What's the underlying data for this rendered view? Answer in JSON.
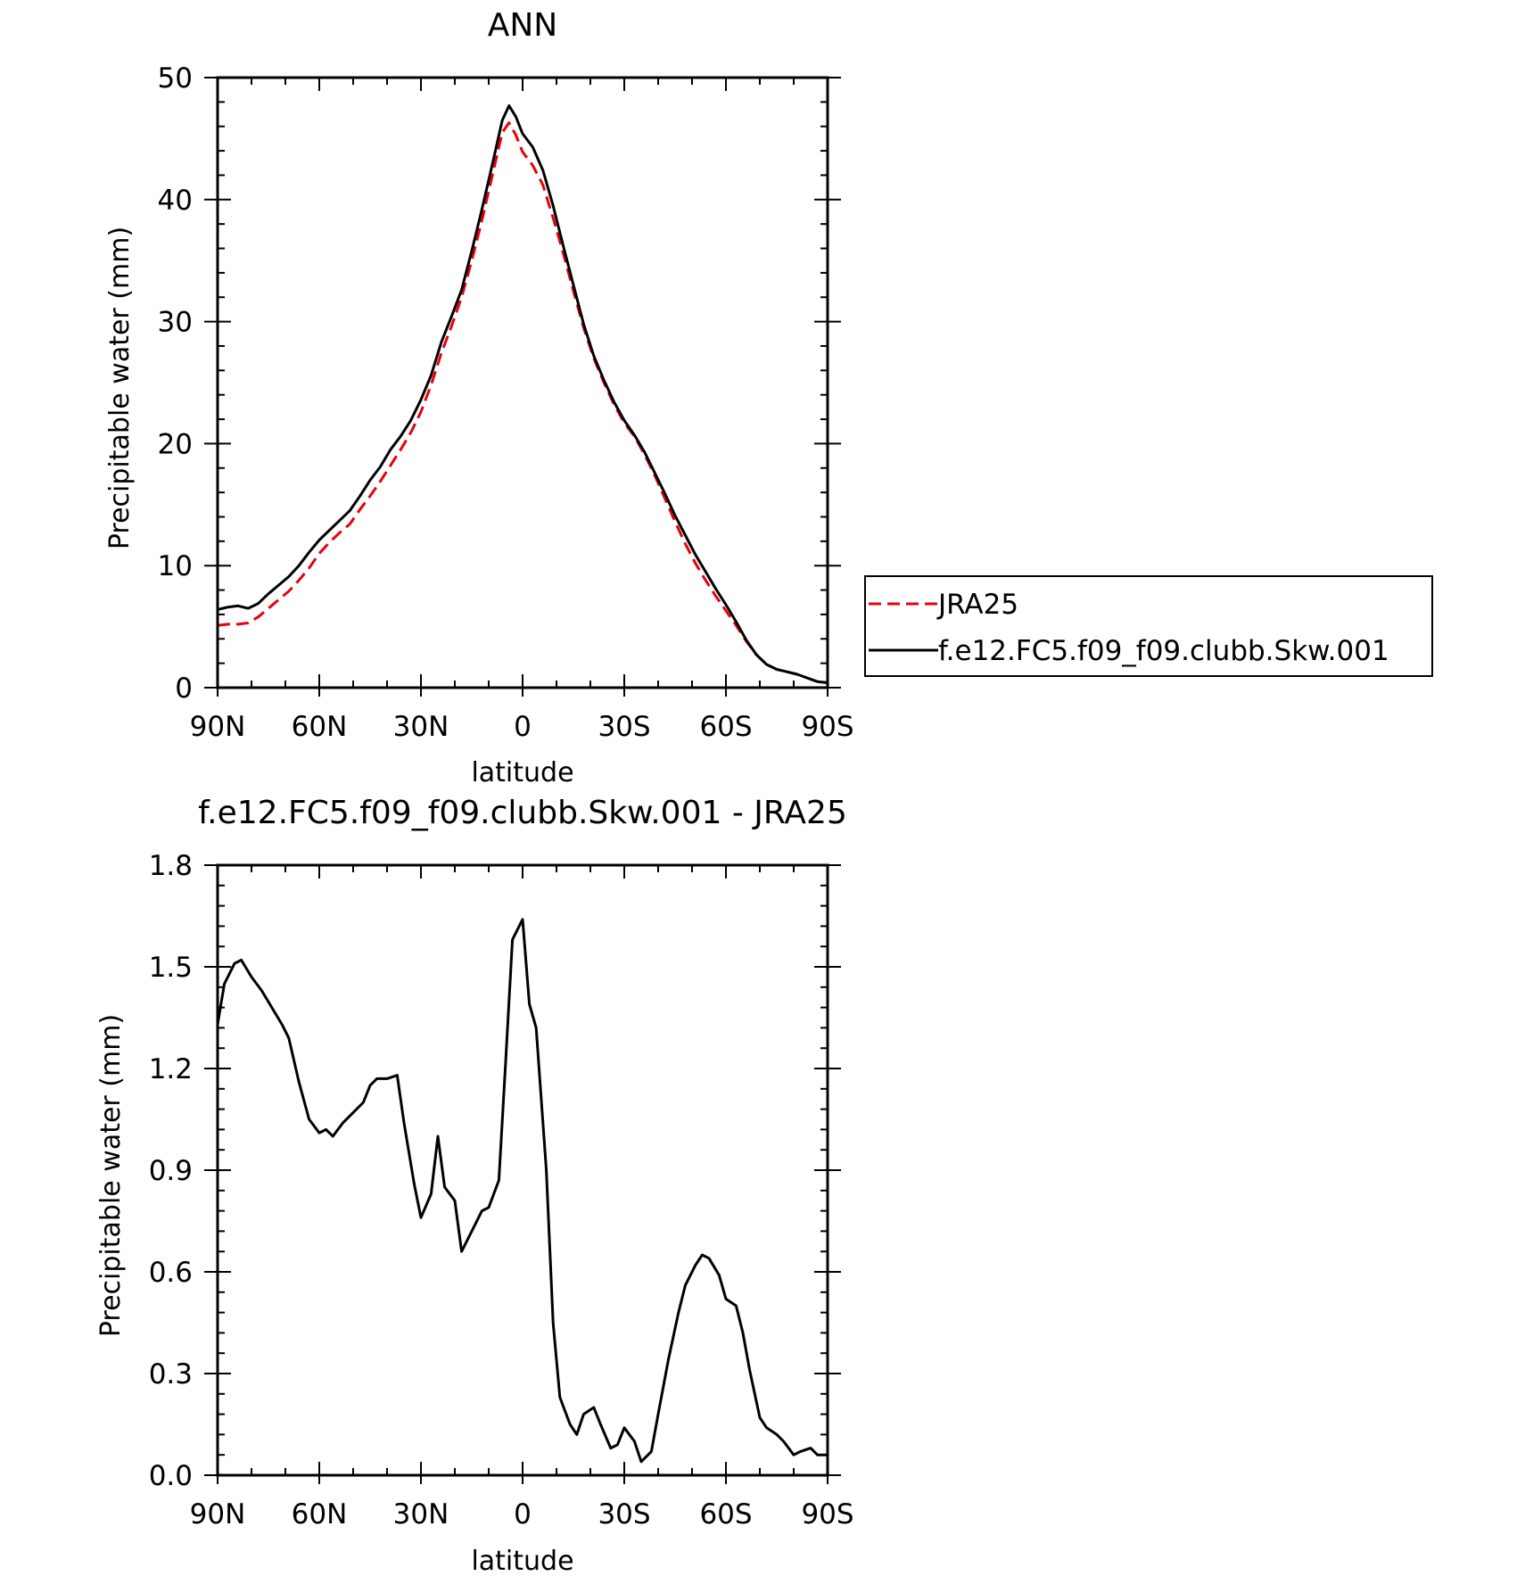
{
  "chart_data": [
    {
      "type": "line",
      "title": "ANN",
      "xlabel": "latitude",
      "ylabel": "Precipitable water (mm)",
      "xlim": [
        90,
        -90
      ],
      "ylim": [
        0,
        50
      ],
      "x_ticks": [
        90,
        60,
        30,
        0,
        -30,
        -60,
        -90
      ],
      "x_tick_labels": [
        "90N",
        "60N",
        "30N",
        "0",
        "30S",
        "60S",
        "90S"
      ],
      "y_ticks": [
        0,
        10,
        20,
        30,
        40,
        50
      ],
      "y_tick_labels": [
        "0",
        "10",
        "20",
        "30",
        "40",
        "50"
      ],
      "grid": false,
      "legend": "right",
      "series": [
        {
          "name": "JRA25",
          "color": "#e8000b",
          "dash": "dashed",
          "points": [
            [
              90,
              5.1
            ],
            [
              87,
              5.2
            ],
            [
              84,
              5.2
            ],
            [
              81,
              5.3
            ],
            [
              78,
              5.8
            ],
            [
              75,
              6.5
            ],
            [
              72,
              7.2
            ],
            [
              69,
              7.9
            ],
            [
              66,
              8.8
            ],
            [
              63,
              9.8
            ],
            [
              60,
              11
            ],
            [
              57,
              11.9
            ],
            [
              54,
              12.7
            ],
            [
              51,
              13.4
            ],
            [
              48,
              14.6
            ],
            [
              45,
              15.7
            ],
            [
              42,
              16.9
            ],
            [
              39,
              18.2
            ],
            [
              36,
              19.5
            ],
            [
              33,
              20.9
            ],
            [
              30,
              22.6
            ],
            [
              27,
              24.8
            ],
            [
              24,
              27.4
            ],
            [
              21,
              29.6
            ],
            [
              18,
              32
            ],
            [
              15,
              35
            ],
            [
              12,
              38.3
            ],
            [
              9,
              41.9
            ],
            [
              6,
              45.5
            ],
            [
              4,
              46.3
            ],
            [
              2,
              45.3
            ],
            [
              0,
              43.9
            ],
            [
              -3,
              42.8
            ],
            [
              -6,
              41.2
            ],
            [
              -9,
              38.5
            ],
            [
              -12,
              35.6
            ],
            [
              -15,
              32.5
            ],
            [
              -18,
              29.5
            ],
            [
              -21,
              27
            ],
            [
              -24,
              25
            ],
            [
              -27,
              23.2
            ],
            [
              -30,
              21.7
            ],
            [
              -33,
              20.6
            ],
            [
              -36,
              19.1
            ],
            [
              -39,
              17.4
            ],
            [
              -42,
              15.5
            ],
            [
              -45,
              13.6
            ],
            [
              -48,
              11.8
            ],
            [
              -51,
              10.2
            ],
            [
              -54,
              8.8
            ],
            [
              -57,
              7.5
            ],
            [
              -60,
              6.3
            ],
            [
              -63,
              5.1
            ],
            [
              -66,
              3.8
            ],
            [
              -69,
              2.7
            ],
            [
              -72,
              1.9
            ],
            [
              -75,
              1.5
            ],
            [
              -78,
              1.3
            ],
            [
              -81,
              1.1
            ],
            [
              -84,
              0.8
            ],
            [
              -87,
              0.5
            ],
            [
              -90,
              0.4
            ]
          ]
        },
        {
          "name": "f.e12.FC5.f09_f09.clubb.Skw.001",
          "color": "#000000",
          "dash": "solid",
          "points": [
            [
              90,
              6.4
            ],
            [
              87,
              6.6
            ],
            [
              84,
              6.7
            ],
            [
              81,
              6.5
            ],
            [
              78,
              6.9
            ],
            [
              75,
              7.7
            ],
            [
              72,
              8.4
            ],
            [
              69,
              9.1
            ],
            [
              66,
              10
            ],
            [
              63,
              11.1
            ],
            [
              60,
              12.1
            ],
            [
              57,
              12.9
            ],
            [
              54,
              13.7
            ],
            [
              51,
              14.5
            ],
            [
              48,
              15.7
            ],
            [
              45,
              17
            ],
            [
              42,
              18.1
            ],
            [
              39,
              19.5
            ],
            [
              36,
              20.6
            ],
            [
              33,
              21.9
            ],
            [
              30,
              23.6
            ],
            [
              27,
              25.6
            ],
            [
              24,
              28.3
            ],
            [
              21,
              30.4
            ],
            [
              18,
              32.6
            ],
            [
              15,
              35.8
            ],
            [
              12,
              39.2
            ],
            [
              9,
              42.8
            ],
            [
              6,
              46.5
            ],
            [
              4,
              47.7
            ],
            [
              2,
              46.8
            ],
            [
              0,
              45.4
            ],
            [
              -3,
              44.3
            ],
            [
              -6,
              42.4
            ],
            [
              -9,
              39.5
            ],
            [
              -12,
              36.2
            ],
            [
              -15,
              33
            ],
            [
              -18,
              29.8
            ],
            [
              -21,
              27.2
            ],
            [
              -24,
              25.2
            ],
            [
              -27,
              23.4
            ],
            [
              -30,
              21.9
            ],
            [
              -33,
              20.7
            ],
            [
              -36,
              19.3
            ],
            [
              -39,
              17.6
            ],
            [
              -42,
              15.9
            ],
            [
              -45,
              14.1
            ],
            [
              -48,
              12.5
            ],
            [
              -51,
              10.9
            ],
            [
              -54,
              9.5
            ],
            [
              -57,
              8.1
            ],
            [
              -60,
              6.8
            ],
            [
              -63,
              5.4
            ],
            [
              -66,
              3.9
            ],
            [
              -69,
              2.7
            ],
            [
              -72,
              1.9
            ],
            [
              -75,
              1.5
            ],
            [
              -78,
              1.3
            ],
            [
              -81,
              1.1
            ],
            [
              -84,
              0.8
            ],
            [
              -87,
              0.5
            ],
            [
              -90,
              0.4
            ]
          ]
        }
      ]
    },
    {
      "type": "line",
      "title": "f.e12.FC5.f09_f09.clubb.Skw.001 - JRA25",
      "xlabel": "latitude",
      "ylabel": "Precipitable water (mm)",
      "xlim": [
        90,
        -90
      ],
      "ylim": [
        0,
        1.8
      ],
      "x_ticks": [
        90,
        60,
        30,
        0,
        -30,
        -60,
        -90
      ],
      "x_tick_labels": [
        "90N",
        "60N",
        "30N",
        "0",
        "30S",
        "60S",
        "90S"
      ],
      "y_ticks": [
        0,
        0.3,
        0.6,
        0.9,
        1.2,
        1.5,
        1.8
      ],
      "y_tick_labels": [
        "0.0",
        "0.3",
        "0.6",
        "0.9",
        "1.2",
        "1.5",
        "1.8"
      ],
      "grid": false,
      "series": [
        {
          "color": "#000000",
          "dash": "solid",
          "points": [
            [
              90,
              1.33
            ],
            [
              88,
              1.45
            ],
            [
              85,
              1.51
            ],
            [
              83,
              1.52
            ],
            [
              80,
              1.47
            ],
            [
              77,
              1.43
            ],
            [
              74,
              1.38
            ],
            [
              71,
              1.33
            ],
            [
              69,
              1.29
            ],
            [
              66,
              1.16
            ],
            [
              63,
              1.05
            ],
            [
              60,
              1.01
            ],
            [
              58,
              1.02
            ],
            [
              56,
              1
            ],
            [
              53,
              1.04
            ],
            [
              50,
              1.07
            ],
            [
              47,
              1.1
            ],
            [
              45,
              1.15
            ],
            [
              43,
              1.17
            ],
            [
              40,
              1.17
            ],
            [
              37,
              1.18
            ],
            [
              35,
              1.04
            ],
            [
              32,
              0.86
            ],
            [
              30,
              0.76
            ],
            [
              27,
              0.83
            ],
            [
              25,
              1
            ],
            [
              23,
              0.85
            ],
            [
              20,
              0.81
            ],
            [
              18,
              0.66
            ],
            [
              15,
              0.72
            ],
            [
              12,
              0.78
            ],
            [
              10,
              0.79
            ],
            [
              7,
              0.87
            ],
            [
              5,
              1.22
            ],
            [
              3,
              1.58
            ],
            [
              0,
              1.64
            ],
            [
              -2,
              1.39
            ],
            [
              -4,
              1.32
            ],
            [
              -7,
              0.9
            ],
            [
              -9,
              0.45
            ],
            [
              -11,
              0.23
            ],
            [
              -14,
              0.15
            ],
            [
              -16,
              0.12
            ],
            [
              -18,
              0.18
            ],
            [
              -21,
              0.2
            ],
            [
              -23,
              0.15
            ],
            [
              -26,
              0.08
            ],
            [
              -28,
              0.09
            ],
            [
              -30,
              0.14
            ],
            [
              -33,
              0.1
            ],
            [
              -35,
              0.04
            ],
            [
              -38,
              0.07
            ],
            [
              -40,
              0.18
            ],
            [
              -43,
              0.34
            ],
            [
              -46,
              0.48
            ],
            [
              -48,
              0.56
            ],
            [
              -51,
              0.62
            ],
            [
              -53,
              0.65
            ],
            [
              -55,
              0.64
            ],
            [
              -58,
              0.59
            ],
            [
              -60,
              0.52
            ],
            [
              -63,
              0.5
            ],
            [
              -65,
              0.42
            ],
            [
              -67,
              0.31
            ],
            [
              -70,
              0.17
            ],
            [
              -72,
              0.14
            ],
            [
              -75,
              0.12
            ],
            [
              -77,
              0.1
            ],
            [
              -80,
              0.06
            ],
            [
              -82,
              0.07
            ],
            [
              -85,
              0.08
            ],
            [
              -87,
              0.06
            ],
            [
              -90,
              0.06
            ]
          ]
        }
      ]
    }
  ]
}
